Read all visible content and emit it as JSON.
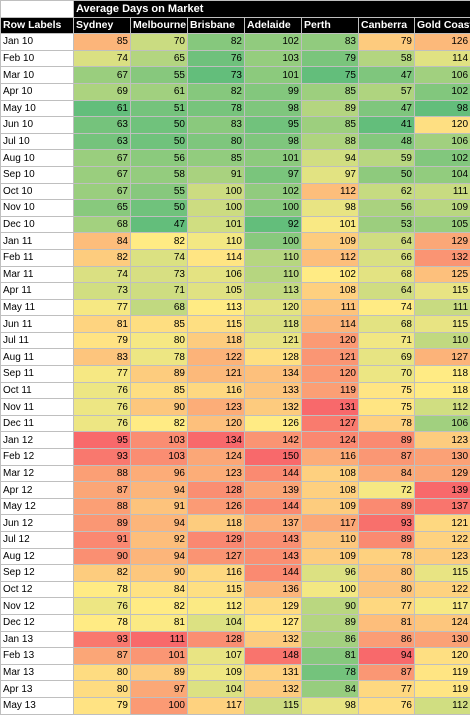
{
  "title": "Average Days on Market",
  "row_labels_header": "Row Labels",
  "columns": [
    "Sydney",
    "Melbourne",
    "Brisbane",
    "Adelaide",
    "Perth",
    "Canberra",
    "Gold Coast"
  ],
  "rows": [
    {
      "label": "Jan 10",
      "values": [
        85,
        70,
        82,
        102,
        83,
        79,
        126
      ]
    },
    {
      "label": "Feb 10",
      "values": [
        74,
        65,
        76,
        103,
        79,
        58,
        114
      ]
    },
    {
      "label": "Mar 10",
      "values": [
        67,
        55,
        73,
        101,
        75,
        47,
        106
      ]
    },
    {
      "label": "Apr 10",
      "values": [
        69,
        61,
        82,
        99,
        85,
        57,
        102
      ]
    },
    {
      "label": "May 10",
      "values": [
        61,
        51,
        78,
        98,
        89,
        47,
        98
      ]
    },
    {
      "label": "Jun 10",
      "values": [
        63,
        50,
        83,
        95,
        85,
        41,
        120
      ]
    },
    {
      "label": "Jul 10",
      "values": [
        63,
        50,
        80,
        98,
        88,
        48,
        106
      ]
    },
    {
      "label": "Aug 10",
      "values": [
        67,
        56,
        85,
        101,
        94,
        59,
        102
      ]
    },
    {
      "label": "Sep 10",
      "values": [
        67,
        58,
        91,
        97,
        97,
        50,
        104
      ]
    },
    {
      "label": "Oct 10",
      "values": [
        67,
        55,
        100,
        102,
        112,
        62,
        111
      ]
    },
    {
      "label": "Nov 10",
      "values": [
        65,
        50,
        100,
        100,
        98,
        56,
        109
      ]
    },
    {
      "label": "Dec 10",
      "values": [
        68,
        47,
        101,
        92,
        101,
        53,
        105
      ]
    },
    {
      "label": "Jan 11",
      "values": [
        84,
        82,
        110,
        100,
        109,
        64,
        129
      ]
    },
    {
      "label": "Feb 11",
      "values": [
        82,
        74,
        114,
        110,
        112,
        66,
        132
      ]
    },
    {
      "label": "Mar 11",
      "values": [
        74,
        73,
        106,
        110,
        102,
        68,
        125
      ]
    },
    {
      "label": "Apr 11",
      "values": [
        73,
        71,
        105,
        113,
        108,
        64,
        115
      ]
    },
    {
      "label": "May 11",
      "values": [
        77,
        68,
        113,
        120,
        111,
        74,
        111
      ]
    },
    {
      "label": "Jun 11",
      "values": [
        81,
        85,
        115,
        118,
        114,
        68,
        115
      ]
    },
    {
      "label": "Jul 11",
      "values": [
        79,
        80,
        118,
        121,
        120,
        71,
        110
      ]
    },
    {
      "label": "Aug 11",
      "values": [
        83,
        78,
        122,
        128,
        121,
        69,
        127
      ]
    },
    {
      "label": "Sep 11",
      "values": [
        77,
        89,
        121,
        134,
        120,
        70,
        118
      ]
    },
    {
      "label": "Oct 11",
      "values": [
        76,
        85,
        116,
        133,
        119,
        75,
        118
      ]
    },
    {
      "label": "Nov 11",
      "values": [
        76,
        90,
        123,
        132,
        131,
        75,
        112
      ]
    },
    {
      "label": "Dec 11",
      "values": [
        76,
        82,
        120,
        126,
        127,
        78,
        106
      ]
    },
    {
      "label": "Jan 12",
      "values": [
        95,
        103,
        134,
        142,
        124,
        89,
        123
      ]
    },
    {
      "label": "Feb 12",
      "values": [
        93,
        103,
        124,
        150,
        116,
        87,
        130
      ]
    },
    {
      "label": "Mar 12",
      "values": [
        88,
        96,
        123,
        144,
        108,
        84,
        129
      ]
    },
    {
      "label": "Apr 12",
      "values": [
        87,
        94,
        128,
        139,
        108,
        72,
        139
      ]
    },
    {
      "label": "May 12",
      "values": [
        88,
        91,
        126,
        144,
        109,
        89,
        137
      ]
    },
    {
      "label": "Jun 12",
      "values": [
        89,
        94,
        118,
        137,
        117,
        93,
        121
      ]
    },
    {
      "label": "Jul 12",
      "values": [
        91,
        92,
        129,
        143,
        110,
        89,
        122
      ]
    },
    {
      "label": "Aug 12",
      "values": [
        90,
        94,
        127,
        143,
        109,
        78,
        123
      ]
    },
    {
      "label": "Sep 12",
      "values": [
        82,
        90,
        116,
        144,
        96,
        80,
        115
      ]
    },
    {
      "label": "Oct 12",
      "values": [
        78,
        84,
        115,
        136,
        100,
        80,
        122
      ]
    },
    {
      "label": "Nov 12",
      "values": [
        76,
        82,
        112,
        129,
        90,
        77,
        117
      ]
    },
    {
      "label": "Dec 12",
      "values": [
        78,
        81,
        104,
        127,
        89,
        81,
        124
      ]
    },
    {
      "label": "Jan 13",
      "values": [
        93,
        111,
        128,
        132,
        86,
        86,
        130
      ]
    },
    {
      "label": "Feb 13",
      "values": [
        87,
        101,
        107,
        148,
        81,
        94,
        120
      ]
    },
    {
      "label": "Mar 13",
      "values": [
        80,
        89,
        109,
        131,
        78,
        87,
        119
      ]
    },
    {
      "label": "Apr 13",
      "values": [
        80,
        97,
        104,
        132,
        84,
        77,
        119
      ]
    },
    {
      "label": "May 13",
      "values": [
        79,
        100,
        117,
        115,
        98,
        76,
        112
      ]
    }
  ],
  "colors": {
    "low": "#63be7b",
    "mid": "#ffeb84",
    "high": "#f8696b"
  }
}
